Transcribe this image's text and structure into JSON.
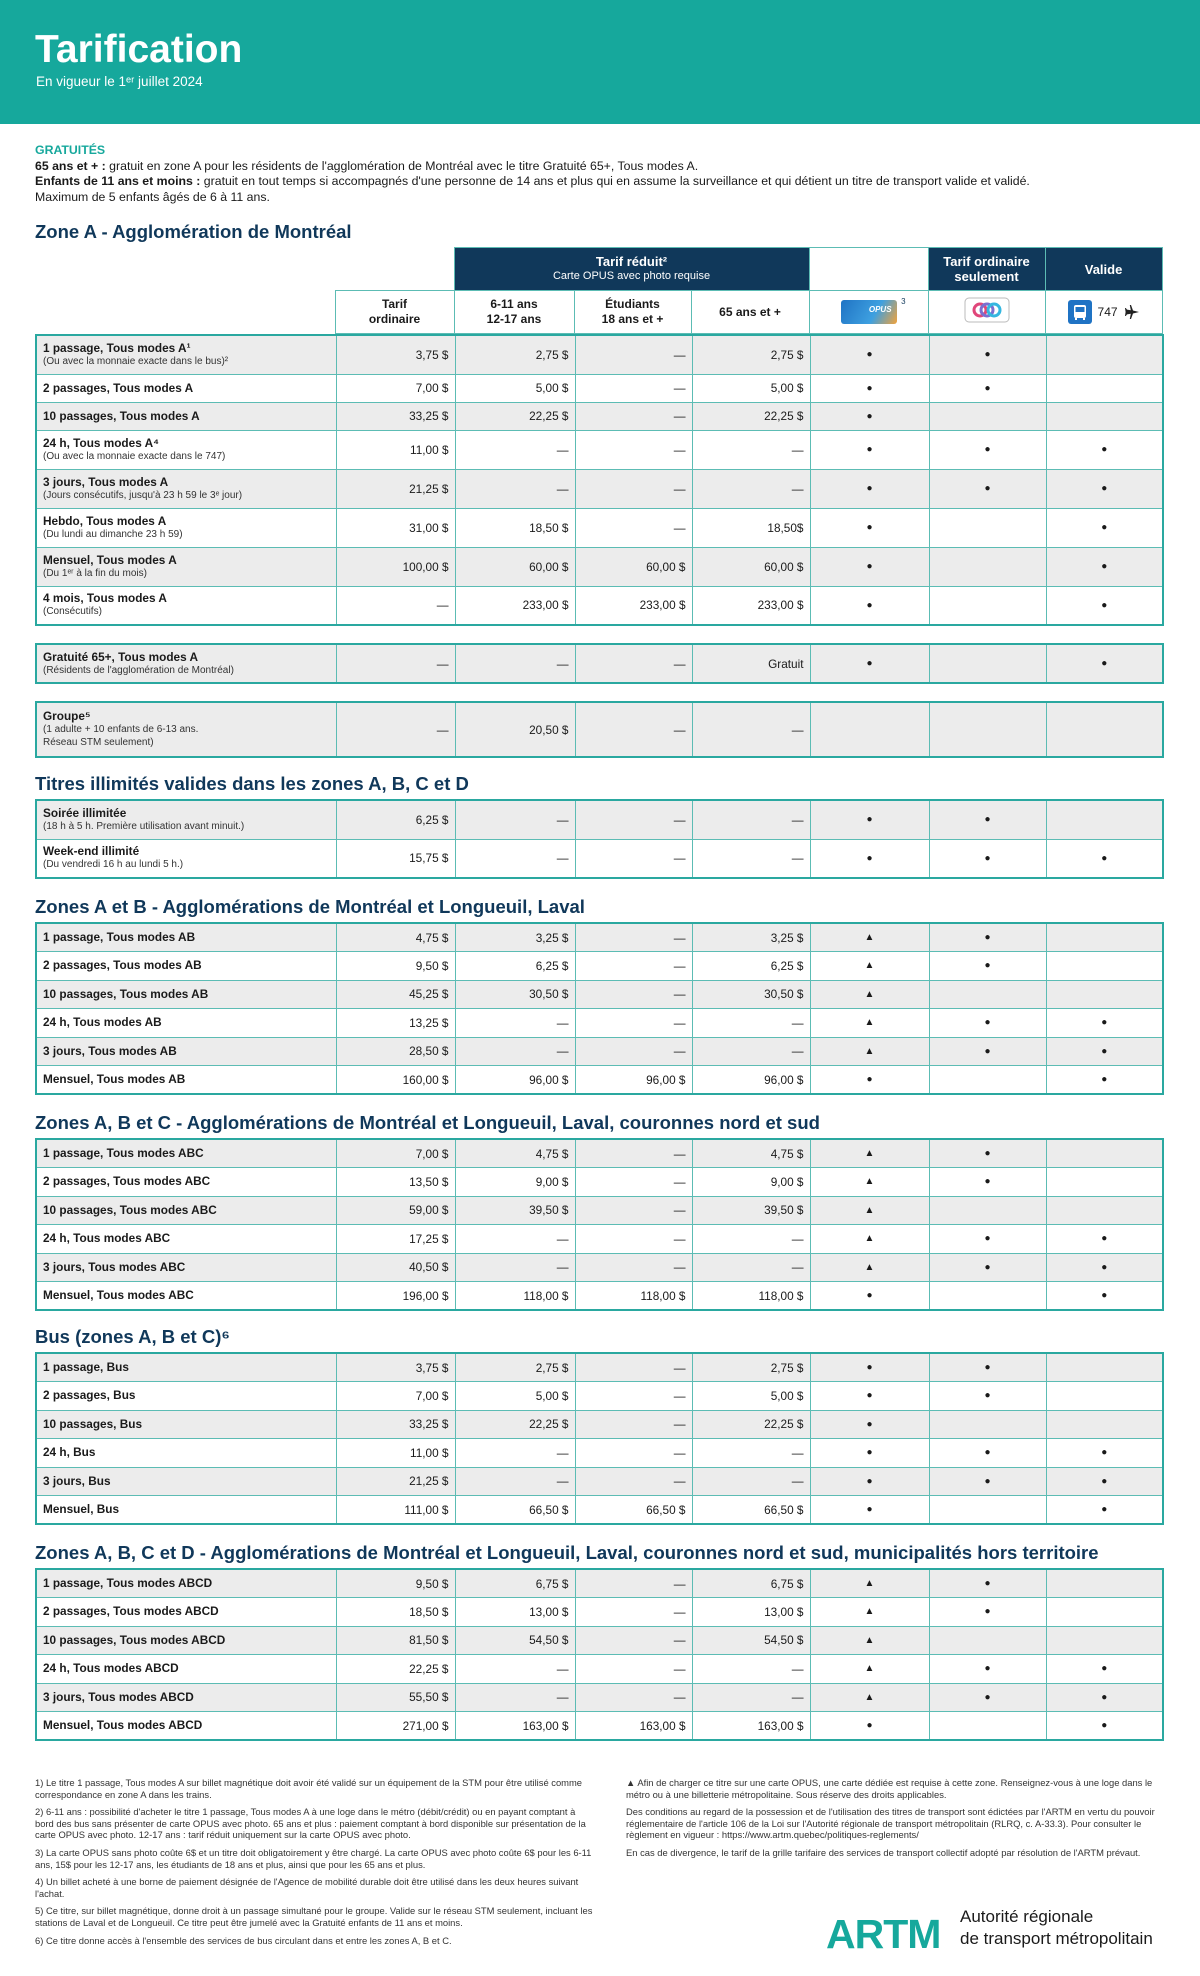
{
  "header": {
    "title": "Tarification",
    "subtitle": "En vigueur le 1ᵉʳ juillet 2024"
  },
  "free": {
    "label": "GRATUITÉS",
    "lines": [
      {
        "lead": "65 ans et + :",
        "text": " gratuit en zone A pour les résidents de l'agglomération de Montréal avec le titre Gratuité 65+, Tous modes A."
      },
      {
        "lead": "Enfants de 11 ans et moins :",
        "text": " gratuit en tout temps si accompagnés d'une personne de 14 ans et plus qui en assume la surveillance et qui détient un titre de transport valide et validé."
      },
      {
        "text": "Maximum de 5 enfants âgés de 6 à 11 ans."
      }
    ]
  },
  "columns": {
    "reduced": "Tarif réduit²",
    "reduced_note": "Carte OPUS avec photo requise",
    "occasional_only": [
      "Tarif ordinaire",
      "seulement"
    ],
    "valid": "Valide",
    "fares": [
      [
        "Tarif",
        "ordinaire"
      ],
      [
        "6-11 ans",
        "12-17 ans"
      ],
      [
        "Étudiants",
        "18 ans et +"
      ],
      [
        "65 ans et +"
      ]
    ],
    "opus": "OPUS",
    "opus_note": "3",
    "valid_bus": "747"
  },
  "sections": [
    {
      "title": "Zone A - Agglomération de Montréal",
      "groups": [
        {
          "rows": [
            {
              "label": "1 passage, Tous modes A¹",
              "note": [
                "(Ou avec la monnaie exacte dans le bus)²"
              ],
              "fares": [
                "3,75 $",
                "2,75 $",
                "—",
                "2,75 $"
              ],
              "marks": [
                "●",
                "●",
                null
              ]
            },
            {
              "label": "2 passages, Tous modes A",
              "note": [],
              "fares": [
                "7,00 $",
                "5,00 $",
                "—",
                "5,00 $"
              ],
              "marks": [
                "●",
                "●",
                null
              ]
            },
            {
              "label": "10 passages, Tous modes A",
              "note": [],
              "fares": [
                "33,25 $",
                "22,25 $",
                "—",
                "22,25 $"
              ],
              "marks": [
                "●",
                null,
                null
              ]
            },
            {
              "label": "24 h, Tous modes A⁴",
              "note": [
                "(Ou avec la monnaie exacte dans le 747)"
              ],
              "fares": [
                "11,00 $",
                "—",
                "—",
                "—"
              ],
              "marks": [
                "●",
                "●",
                "●"
              ]
            },
            {
              "label": "3 jours, Tous modes A",
              "note": [
                "(Jours consécutifs, jusqu'à 23 h 59 le 3ᵉ jour)"
              ],
              "fares": [
                "21,25 $",
                "—",
                "—",
                "—"
              ],
              "marks": [
                "●",
                "●",
                "●"
              ]
            },
            {
              "label": "Hebdo, Tous modes A",
              "note": [
                "(Du lundi au dimanche 23 h 59)"
              ],
              "fares": [
                "31,00 $",
                "18,50 $",
                "—",
                "18,50$"
              ],
              "marks": [
                "●",
                null,
                "●"
              ]
            },
            {
              "label": "Mensuel, Tous modes A",
              "note": [
                "(Du 1ᵉʳ à la fin du mois)"
              ],
              "fares": [
                "100,00 $",
                "60,00 $",
                "60,00 $",
                "60,00 $"
              ],
              "marks": [
                "●",
                null,
                "●"
              ]
            },
            {
              "label": "4 mois, Tous modes A",
              "note": [
                "(Consécutifs)"
              ],
              "fares": [
                "—",
                "233,00 $",
                "233,00 $",
                "233,00 $"
              ],
              "marks": [
                "●",
                null,
                "●"
              ]
            }
          ]
        },
        {
          "rows": [
            {
              "label": "Gratuité 65+, Tous modes A",
              "note": [
                "(Résidents de l'agglomération de Montréal)"
              ],
              "fares": [
                "—",
                "—",
                "—",
                "Gratuit"
              ],
              "marks": [
                "●",
                null,
                "●"
              ]
            }
          ]
        },
        {
          "rows": [
            {
              "label": "Groupe⁵",
              "note": [
                "(1 adulte + 10 enfants de 6-13 ans.",
                "Réseau STM seulement)"
              ],
              "fares": [
                "—",
                "20,50 $",
                "—",
                "—"
              ],
              "marks": [
                null,
                null,
                null
              ]
            }
          ]
        }
      ]
    },
    {
      "title": "Titres illimités valides dans les zones A, B, C et D",
      "groups": [
        {
          "rows": [
            {
              "label": "Soirée illimitée",
              "note": [
                "(18 h à 5 h. Première utilisation avant minuit.)"
              ],
              "fares": [
                "6,25 $",
                "—",
                "—",
                "—"
              ],
              "marks": [
                "●",
                "●",
                null
              ]
            },
            {
              "label": "Week-end illimité",
              "note": [
                "(Du vendredi 16 h au lundi 5 h.)"
              ],
              "fares": [
                "15,75 $",
                "—",
                "—",
                "—"
              ],
              "marks": [
                "●",
                "●",
                "●"
              ]
            }
          ]
        }
      ]
    },
    {
      "title": "Zones A et B - Agglomérations de Montréal et Longueuil, Laval",
      "groups": [
        {
          "rows": [
            {
              "label": "1 passage, Tous modes AB",
              "note": [],
              "fares": [
                "4,75 $",
                "3,25 $",
                "—",
                "3,25 $"
              ],
              "marks": [
                "▲",
                "●",
                null
              ]
            },
            {
              "label": "2 passages, Tous modes AB",
              "note": [],
              "fares": [
                "9,50 $",
                "6,25 $",
                "—",
                "6,25 $"
              ],
              "marks": [
                "▲",
                "●",
                null
              ]
            },
            {
              "label": "10 passages, Tous modes AB",
              "note": [],
              "fares": [
                "45,25 $",
                "30,50 $",
                "—",
                "30,50 $"
              ],
              "marks": [
                "▲",
                null,
                null
              ]
            },
            {
              "label": "24 h, Tous modes AB",
              "note": [],
              "fares": [
                "13,25 $",
                "—",
                "—",
                "—"
              ],
              "marks": [
                "▲",
                "●",
                "●"
              ]
            },
            {
              "label": "3 jours, Tous modes AB",
              "note": [],
              "fares": [
                "28,50 $",
                "—",
                "—",
                "—"
              ],
              "marks": [
                "▲",
                "●",
                "●"
              ]
            },
            {
              "label": "Mensuel, Tous modes AB",
              "note": [],
              "fares": [
                "160,00 $",
                "96,00 $",
                "96,00 $",
                "96,00 $"
              ],
              "marks": [
                "●",
                null,
                "●"
              ]
            }
          ]
        }
      ]
    },
    {
      "title": "Zones A, B et C - Agglomérations de Montréal et Longueuil, Laval, couronnes nord et sud",
      "groups": [
        {
          "rows": [
            {
              "label": "1 passage, Tous modes ABC",
              "note": [],
              "fares": [
                "7,00 $",
                "4,75 $",
                "—",
                "4,75 $"
              ],
              "marks": [
                "▲",
                "●",
                null
              ]
            },
            {
              "label": "2 passages, Tous modes ABC",
              "note": [],
              "fares": [
                "13,50 $",
                "9,00 $",
                "—",
                "9,00 $"
              ],
              "marks": [
                "▲",
                "●",
                null
              ]
            },
            {
              "label": "10 passages, Tous modes ABC",
              "note": [],
              "fares": [
                "59,00 $",
                "39,50 $",
                "—",
                "39,50 $"
              ],
              "marks": [
                "▲",
                null,
                null
              ]
            },
            {
              "label": "24 h, Tous modes ABC",
              "note": [],
              "fares": [
                "17,25 $",
                "—",
                "—",
                "—"
              ],
              "marks": [
                "▲",
                "●",
                "●"
              ]
            },
            {
              "label": "3 jours, Tous modes ABC",
              "note": [],
              "fares": [
                "40,50 $",
                "—",
                "—",
                "—"
              ],
              "marks": [
                "▲",
                "●",
                "●"
              ]
            },
            {
              "label": "Mensuel, Tous modes ABC",
              "note": [],
              "fares": [
                "196,00 $",
                "118,00 $",
                "118,00 $",
                "118,00 $"
              ],
              "marks": [
                "●",
                null,
                "●"
              ]
            }
          ]
        }
      ]
    },
    {
      "title": "Bus (zones A, B et C)⁶",
      "groups": [
        {
          "rows": [
            {
              "label": "1 passage, Bus",
              "note": [],
              "fares": [
                "3,75 $",
                "2,75 $",
                "—",
                "2,75 $"
              ],
              "marks": [
                "●",
                "●",
                null
              ]
            },
            {
              "label": "2 passages, Bus",
              "note": [],
              "fares": [
                "7,00 $",
                "5,00 $",
                "—",
                "5,00 $"
              ],
              "marks": [
                "●",
                "●",
                null
              ]
            },
            {
              "label": "10 passages, Bus",
              "note": [],
              "fares": [
                "33,25 $",
                "22,25 $",
                "—",
                "22,25 $"
              ],
              "marks": [
                "●",
                null,
                null
              ]
            },
            {
              "label": "24 h, Bus",
              "note": [],
              "fares": [
                "11,00 $",
                "—",
                "—",
                "—"
              ],
              "marks": [
                "●",
                "●",
                "●"
              ]
            },
            {
              "label": "3 jours, Bus",
              "note": [],
              "fares": [
                "21,25 $",
                "—",
                "—",
                "—"
              ],
              "marks": [
                "●",
                "●",
                "●"
              ]
            },
            {
              "label": "Mensuel, Bus",
              "note": [],
              "fares": [
                "111,00 $",
                "66,50 $",
                "66,50 $",
                "66,50 $"
              ],
              "marks": [
                "●",
                null,
                "●"
              ]
            }
          ]
        }
      ]
    },
    {
      "title": "Zones A, B, C et D - Agglomérations de Montréal et Longueuil, Laval, couronnes nord et sud, municipalités hors territoire",
      "groups": [
        {
          "rows": [
            {
              "label": "1 passage, Tous modes ABCD",
              "note": [],
              "fares": [
                "9,50 $",
                "6,75 $",
                "—",
                "6,75 $"
              ],
              "marks": [
                "▲",
                "●",
                null
              ]
            },
            {
              "label": "2 passages, Tous modes ABCD",
              "note": [],
              "fares": [
                "18,50 $",
                "13,00 $",
                "—",
                "13,00 $"
              ],
              "marks": [
                "▲",
                "●",
                null
              ]
            },
            {
              "label": "10 passages, Tous modes ABCD",
              "note": [],
              "fares": [
                "81,50 $",
                "54,50 $",
                "—",
                "54,50 $"
              ],
              "marks": [
                "▲",
                null,
                null
              ]
            },
            {
              "label": "24 h, Tous modes ABCD",
              "note": [],
              "fares": [
                "22,25 $",
                "—",
                "—",
                "—"
              ],
              "marks": [
                "▲",
                "●",
                "●"
              ]
            },
            {
              "label": "3 jours, Tous modes ABCD",
              "note": [],
              "fares": [
                "55,50 $",
                "—",
                "—",
                "—"
              ],
              "marks": [
                "▲",
                "●",
                "●"
              ]
            },
            {
              "label": "Mensuel, Tous modes ABCD",
              "note": [],
              "fares": [
                "271,00 $",
                "163,00 $",
                "163,00 $",
                "163,00 $"
              ],
              "marks": [
                "●",
                null,
                "●"
              ]
            }
          ]
        }
      ]
    }
  ],
  "footnotes": {
    "left": [
      "1) Le titre 1 passage, Tous modes A sur billet magnétique doit avoir été validé sur un équipement de la STM pour être utilisé comme correspondance en zone A dans les trains.",
      "2) 6-11 ans : possibilité d'acheter le titre 1 passage, Tous modes A à une loge dans le métro (débit/crédit) ou en payant comptant à bord des bus sans présenter de carte OPUS avec photo. 65 ans et plus : paiement comptant à bord disponible sur présentation de la carte OPUS avec photo.  12-17 ans : tarif réduit uniquement sur la carte OPUS avec photo.",
      "3) La carte OPUS sans photo coûte 6$ et un titre doit obligatoirement y être chargé. La carte OPUS avec photo coûte 6$ pour les 6-11 ans, 15$ pour les 12-17 ans, les étudiants de 18 ans et plus, ainsi que pour les 65 ans et plus.",
      "4) Un billet acheté à une borne de paiement désignée de l'Agence de mobilité durable doit être utilisé dans les deux heures suivant l'achat.",
      "5) Ce titre, sur billet magnétique, donne droit à un passage simultané pour le groupe.  Valide sur le réseau STM seulement, incluant les stations de Laval et de Longueuil. Ce titre peut être jumelé avec la Gratuité enfants de 11 ans et moins.",
      "6) Ce titre donne accès à l'ensemble des services de bus circulant dans et entre les zones A, B et C."
    ],
    "right": [
      "▲ Afin de charger ce titre sur une carte OPUS, une carte dédiée est requise à cette zone. Renseignez-vous à une loge dans le métro ou à une billetterie métropolitaine. Sous réserve des droits applicables.",
      "Des conditions au regard de la possession et de l'utilisation des titres de transport sont édictées par l'ARTM en vertu du pouvoir réglementaire de l'article 106 de la Loi sur l'Autorité régionale de transport métropolitain (RLRQ, c. A-33.3). Pour consulter le règlement en vigueur : https://www.artm.quebec/politiques-reglements/",
      "En cas de divergence, le tarif de la grille tarifaire des services de transport collectif adopté par résolution de l'ARTM prévaut."
    ]
  },
  "logo": {
    "mark": "ARTM",
    "name": [
      "Autorité régionale",
      "de transport métropolitain"
    ]
  }
}
